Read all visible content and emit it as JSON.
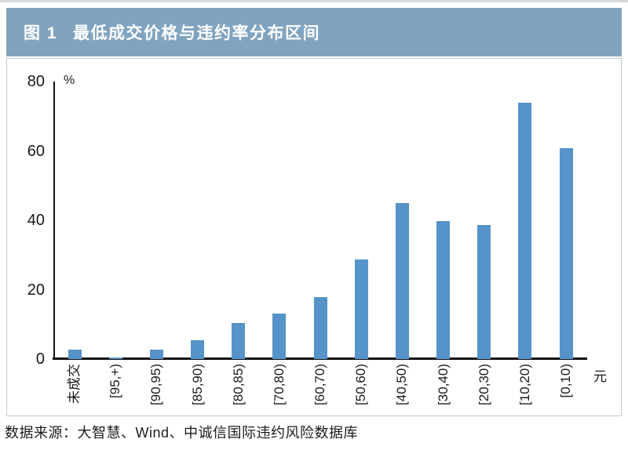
{
  "figure": {
    "label": "图 1",
    "title": "最低成交价格与违约率分布区间"
  },
  "source_note": "数据来源：大智慧、Wind、中诚信国际违约风险数据库",
  "colors": {
    "header_bg": "#80a4c0",
    "bar": "#5593c8",
    "axis": "#121212"
  },
  "chart_data": {
    "type": "bar",
    "title": "最低成交价格与违约率分布区间",
    "categories": [
      "未成交",
      "[95,+)",
      "[90,95)",
      "[85,90)",
      "[80,85)",
      "[70,80)",
      "[60,70)",
      "[50,60)",
      "[40,50)",
      "[30,40)",
      "[20,30)",
      "[10,20)",
      "[0,10)"
    ],
    "values": [
      2.8,
      0.5,
      2.6,
      5.4,
      10.3,
      13.2,
      17.9,
      28.6,
      45.0,
      39.8,
      38.6,
      73.8,
      60.8
    ],
    "xlabel": "元",
    "ylabel": "%",
    "ylim": [
      0,
      80
    ],
    "yticks": [
      0,
      20,
      40,
      60,
      80
    ],
    "grid": false,
    "legend": null
  }
}
